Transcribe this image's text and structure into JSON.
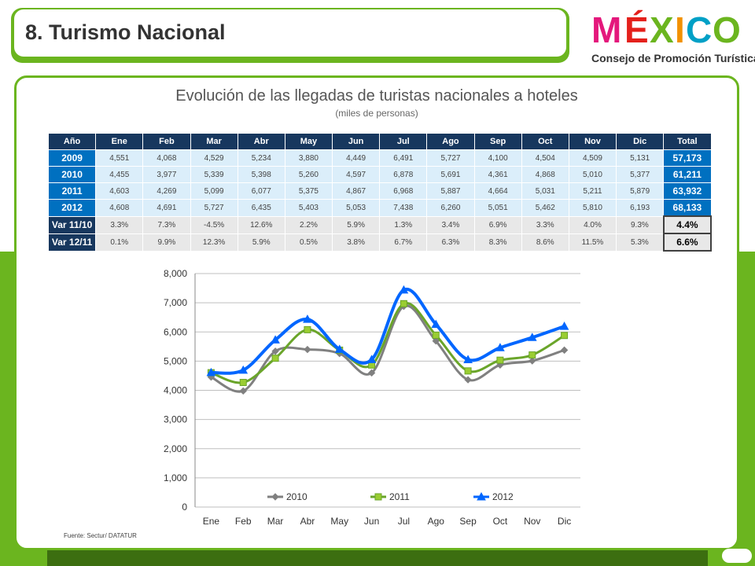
{
  "header": {
    "title": "8. Turismo Nacional"
  },
  "logo": {
    "word": "MÉXICO",
    "subtitle": "Consejo de Promoción Turística"
  },
  "panel": {
    "title": "Evolución de las llegadas de turistas nacionales a hoteles",
    "subtitle": "(miles de personas)"
  },
  "table": {
    "headers": [
      "Año",
      "Ene",
      "Feb",
      "Mar",
      "Abr",
      "May",
      "Jun",
      "Jul",
      "Ago",
      "Sep",
      "Oct",
      "Nov",
      "Dic",
      "Total"
    ],
    "rows": [
      {
        "label": "2009",
        "cells": [
          "4,551",
          "4,068",
          "4,529",
          "5,234",
          "3,880",
          "4,449",
          "6,491",
          "5,727",
          "4,100",
          "4,504",
          "4,509",
          "5,131"
        ],
        "total": "57,173"
      },
      {
        "label": "2010",
        "cells": [
          "4,455",
          "3,977",
          "5,339",
          "5,398",
          "5,260",
          "4,597",
          "6,878",
          "5,691",
          "4,361",
          "4,868",
          "5,010",
          "5,377"
        ],
        "total": "61,211"
      },
      {
        "label": "2011",
        "cells": [
          "4,603",
          "4,269",
          "5,099",
          "6,077",
          "5,375",
          "4,867",
          "6,968",
          "5,887",
          "4,664",
          "5,031",
          "5,211",
          "5,879"
        ],
        "total": "63,932"
      },
      {
        "label": "2012",
        "cells": [
          "4,608",
          "4,691",
          "5,727",
          "6,435",
          "5,403",
          "5,053",
          "7,438",
          "6,260",
          "5,051",
          "5,462",
          "5,810",
          "6,193"
        ],
        "total": "68,133"
      }
    ],
    "var_rows": [
      {
        "label": "Var 11/10",
        "cells": [
          "3.3%",
          "7.3%",
          "-4.5%",
          "12.6%",
          "2.2%",
          "5.9%",
          "1.3%",
          "3.4%",
          "6.9%",
          "3.3%",
          "4.0%",
          "9.3%"
        ],
        "total": "4.4%"
      },
      {
        "label": "Var 12/11",
        "cells": [
          "0.1%",
          "9.9%",
          "12.3%",
          "5.9%",
          "0.5%",
          "3.8%",
          "6.7%",
          "6.3%",
          "8.3%",
          "8.6%",
          "11.5%",
          "5.3%"
        ],
        "total": "6.6%"
      }
    ]
  },
  "chart_data": {
    "type": "line",
    "categories": [
      "Ene",
      "Feb",
      "Mar",
      "Abr",
      "May",
      "Jun",
      "Jul",
      "Ago",
      "Sep",
      "Oct",
      "Nov",
      "Dic"
    ],
    "ylim": [
      0,
      8000
    ],
    "yticks": [
      "0",
      "1,000",
      "2,000",
      "3,000",
      "4,000",
      "5,000",
      "6,000",
      "7,000",
      "8,000"
    ],
    "series": [
      {
        "name": "2010",
        "color": "#808080",
        "marker": "diamond",
        "values": [
          4455,
          3977,
          5339,
          5398,
          5260,
          4597,
          6878,
          5691,
          4361,
          4868,
          5010,
          5377
        ]
      },
      {
        "name": "2011",
        "color": "#6aa52a",
        "marker": "square",
        "values": [
          4603,
          4269,
          5099,
          6077,
          5375,
          4867,
          6968,
          5887,
          4664,
          5031,
          5211,
          5879
        ]
      },
      {
        "name": "2012",
        "color": "#0066ff",
        "marker": "triangle",
        "values": [
          4608,
          4691,
          5727,
          6435,
          5403,
          5053,
          7438,
          6260,
          5051,
          5462,
          5810,
          6193
        ]
      }
    ],
    "grid": true,
    "legend": "bottom-inside"
  },
  "source": "Fuente: Sectur/ DATATUR"
}
